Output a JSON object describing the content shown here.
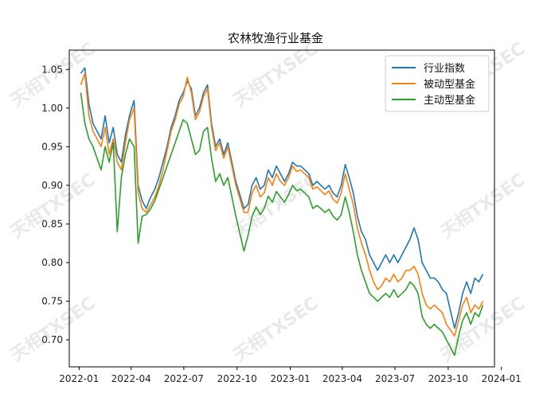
{
  "chart_data": {
    "type": "line",
    "title": "农林牧渔行业基金",
    "xlabel": "",
    "ylabel": "",
    "xlim": [
      "2021-12-15",
      "2023-12-20"
    ],
    "ylim": [
      0.665,
      1.075
    ],
    "x_ticks": [
      "2022-01",
      "2022-04",
      "2022-07",
      "2022-10",
      "2023-01",
      "2023-04",
      "2023-07",
      "2023-10",
      "2024-01"
    ],
    "x_tick_dates": [
      "2022-01-01",
      "2022-04-01",
      "2022-07-01",
      "2022-10-01",
      "2023-01-01",
      "2023-04-01",
      "2023-07-01",
      "2023-10-01",
      "2024-01-01"
    ],
    "y_ticks": [
      0.7,
      0.75,
      0.8,
      0.85,
      0.9,
      0.95,
      1.0,
      1.05
    ],
    "y_tick_labels": [
      "0.70",
      "0.75",
      "0.80",
      "0.85",
      "0.90",
      "0.95",
      "1.00",
      "1.05"
    ],
    "grid": false,
    "legend_position": "top-right",
    "x": [
      "2022-01-04",
      "2022-01-11",
      "2022-01-18",
      "2022-01-25",
      "2022-02-08",
      "2022-02-15",
      "2022-02-22",
      "2022-03-01",
      "2022-03-08",
      "2022-03-15",
      "2022-03-22",
      "2022-03-29",
      "2022-04-06",
      "2022-04-13",
      "2022-04-20",
      "2022-04-27",
      "2022-05-05",
      "2022-05-12",
      "2022-05-19",
      "2022-05-26",
      "2022-06-02",
      "2022-06-09",
      "2022-06-16",
      "2022-06-23",
      "2022-06-30",
      "2022-07-07",
      "2022-07-14",
      "2022-07-21",
      "2022-07-28",
      "2022-08-04",
      "2022-08-11",
      "2022-08-18",
      "2022-08-25",
      "2022-09-01",
      "2022-09-08",
      "2022-09-15",
      "2022-09-22",
      "2022-09-29",
      "2022-10-13",
      "2022-10-20",
      "2022-10-27",
      "2022-11-03",
      "2022-11-10",
      "2022-11-17",
      "2022-11-24",
      "2022-12-01",
      "2022-12-08",
      "2022-12-15",
      "2022-12-22",
      "2022-12-29",
      "2023-01-05",
      "2023-01-12",
      "2023-01-19",
      "2023-02-02",
      "2023-02-09",
      "2023-02-16",
      "2023-02-23",
      "2023-03-02",
      "2023-03-09",
      "2023-03-16",
      "2023-03-23",
      "2023-03-30",
      "2023-04-06",
      "2023-04-13",
      "2023-04-20",
      "2023-04-27",
      "2023-05-04",
      "2023-05-11",
      "2023-05-18",
      "2023-05-25",
      "2023-06-01",
      "2023-06-08",
      "2023-06-15",
      "2023-06-22",
      "2023-06-29",
      "2023-07-06",
      "2023-07-13",
      "2023-07-20",
      "2023-07-27",
      "2023-08-03",
      "2023-08-10",
      "2023-08-17",
      "2023-08-24",
      "2023-08-31",
      "2023-09-07",
      "2023-09-14",
      "2023-09-21",
      "2023-09-28",
      "2023-10-12",
      "2023-10-19",
      "2023-10-26",
      "2023-11-02",
      "2023-11-09",
      "2023-11-16",
      "2023-11-23",
      "2023-11-30"
    ],
    "series": [
      {
        "name": "行业指数",
        "color": "#1f77b4",
        "values": [
          1.045,
          1.052,
          1.005,
          0.98,
          0.96,
          0.99,
          0.955,
          0.975,
          0.94,
          0.93,
          0.965,
          0.99,
          1.01,
          0.9,
          0.88,
          0.87,
          0.885,
          0.895,
          0.91,
          0.93,
          0.95,
          0.975,
          0.99,
          1.01,
          1.02,
          1.035,
          1.025,
          0.99,
          1.0,
          1.02,
          1.03,
          0.98,
          0.95,
          0.96,
          0.94,
          0.955,
          0.93,
          0.905,
          0.87,
          0.875,
          0.9,
          0.91,
          0.895,
          0.9,
          0.92,
          0.91,
          0.925,
          0.915,
          0.905,
          0.915,
          0.93,
          0.925,
          0.925,
          0.915,
          0.9,
          0.905,
          0.9,
          0.895,
          0.9,
          0.89,
          0.885,
          0.9,
          0.927,
          0.91,
          0.89,
          0.86,
          0.84,
          0.83,
          0.81,
          0.8,
          0.79,
          0.8,
          0.81,
          0.8,
          0.81,
          0.8,
          0.81,
          0.82,
          0.83,
          0.845,
          0.83,
          0.8,
          0.79,
          0.78,
          0.78,
          0.775,
          0.765,
          0.76,
          0.715,
          0.735,
          0.76,
          0.775,
          0.76,
          0.78,
          0.775,
          0.785
        ]
      },
      {
        "name": "被动型基金",
        "color": "#ff7f0e",
        "values": [
          1.03,
          1.045,
          0.99,
          0.97,
          0.95,
          0.975,
          0.94,
          0.96,
          0.93,
          0.92,
          0.955,
          0.985,
          1.0,
          0.89,
          0.87,
          0.865,
          0.875,
          0.885,
          0.9,
          0.92,
          0.945,
          0.97,
          0.985,
          1.005,
          1.015,
          1.04,
          1.02,
          0.985,
          0.995,
          1.015,
          1.025,
          0.975,
          0.945,
          0.955,
          0.935,
          0.95,
          0.925,
          0.9,
          0.865,
          0.865,
          0.89,
          0.9,
          0.885,
          0.89,
          0.91,
          0.9,
          0.915,
          0.905,
          0.9,
          0.91,
          0.925,
          0.918,
          0.92,
          0.91,
          0.895,
          0.898,
          0.893,
          0.888,
          0.893,
          0.882,
          0.877,
          0.89,
          0.915,
          0.895,
          0.875,
          0.845,
          0.825,
          0.81,
          0.79,
          0.775,
          0.765,
          0.77,
          0.78,
          0.775,
          0.785,
          0.775,
          0.78,
          0.79,
          0.79,
          0.795,
          0.785,
          0.76,
          0.745,
          0.74,
          0.745,
          0.74,
          0.735,
          0.72,
          0.705,
          0.725,
          0.745,
          0.755,
          0.735,
          0.745,
          0.74,
          0.75
        ]
      },
      {
        "name": "主动型基金",
        "color": "#2ca02c",
        "values": [
          1.02,
          0.98,
          0.96,
          0.95,
          0.92,
          0.95,
          0.93,
          0.955,
          0.84,
          0.91,
          0.94,
          0.96,
          0.95,
          0.825,
          0.86,
          0.862,
          0.87,
          0.88,
          0.895,
          0.91,
          0.925,
          0.94,
          0.955,
          0.97,
          0.985,
          0.98,
          0.96,
          0.94,
          0.945,
          0.97,
          0.975,
          0.935,
          0.905,
          0.915,
          0.9,
          0.91,
          0.885,
          0.86,
          0.815,
          0.835,
          0.86,
          0.872,
          0.862,
          0.87,
          0.886,
          0.878,
          0.892,
          0.885,
          0.878,
          0.888,
          0.9,
          0.893,
          0.895,
          0.885,
          0.87,
          0.874,
          0.87,
          0.865,
          0.869,
          0.86,
          0.855,
          0.862,
          0.885,
          0.865,
          0.84,
          0.81,
          0.79,
          0.775,
          0.76,
          0.755,
          0.75,
          0.755,
          0.76,
          0.755,
          0.765,
          0.755,
          0.76,
          0.765,
          0.775,
          0.77,
          0.76,
          0.73,
          0.72,
          0.715,
          0.72,
          0.715,
          0.71,
          0.7,
          0.68,
          0.705,
          0.725,
          0.735,
          0.72,
          0.735,
          0.73,
          0.745
        ]
      }
    ]
  },
  "watermark": "天相TXSEC"
}
